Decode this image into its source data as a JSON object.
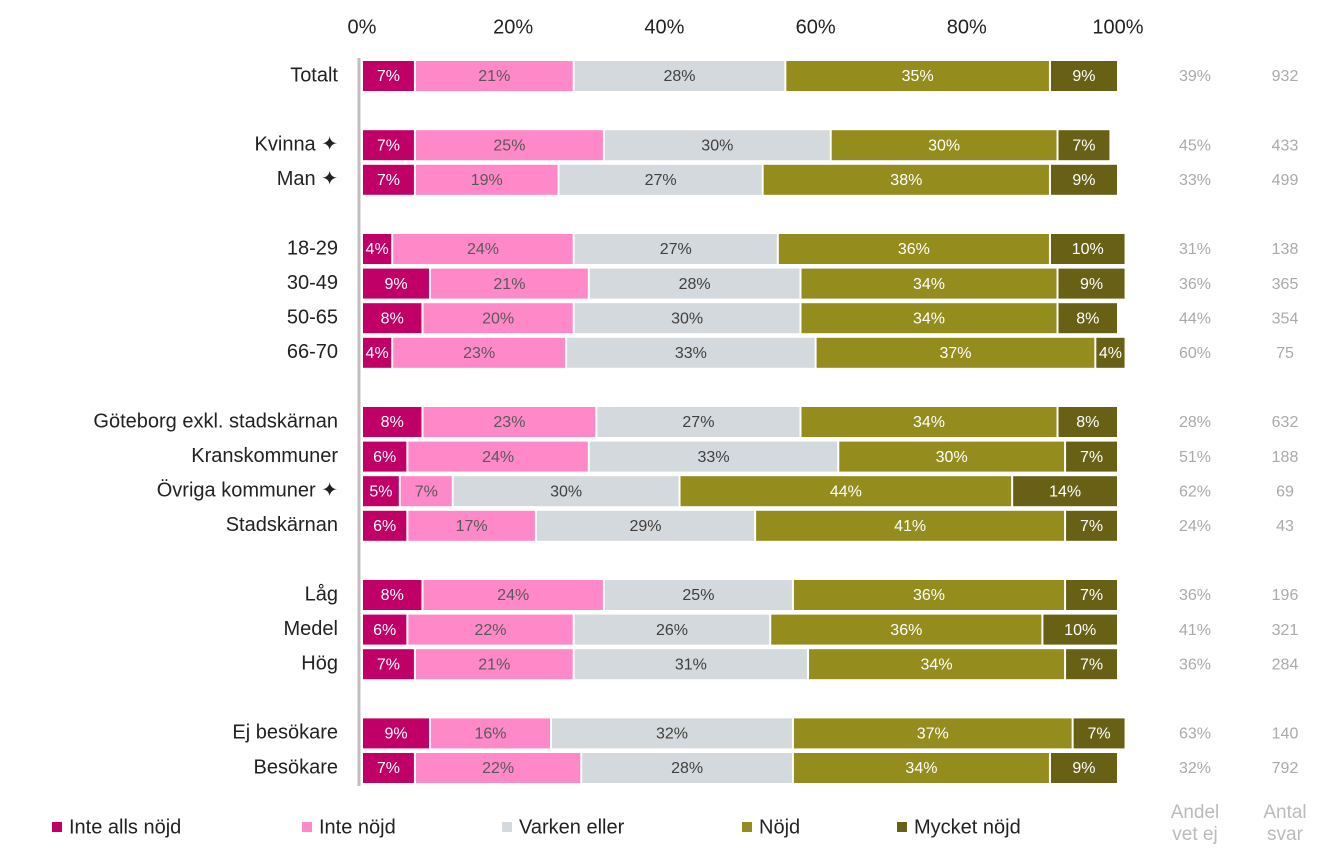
{
  "chart_data": {
    "type": "stacked-bar-horizontal",
    "categories": [
      "Totalt",
      null,
      "Kvinna ✦",
      "Man ✦",
      null,
      "18-29",
      "30-49",
      "50-65",
      "66-70",
      null,
      "Göteborg exkl. stadskärnan",
      "Kranskommuner",
      "Övriga kommuner ✦",
      "Stadskärnan",
      null,
      "Låg",
      "Medel",
      "Hög",
      null,
      "Ej besökare",
      "Besökare"
    ],
    "xlim": [
      0,
      100
    ],
    "xticks": [
      {
        "value": 0,
        "label": "0%"
      },
      {
        "value": 20,
        "label": "20%"
      },
      {
        "value": 40,
        "label": "40%"
      },
      {
        "value": 60,
        "label": "60%"
      },
      {
        "value": 80,
        "label": "80%"
      },
      {
        "value": 100,
        "label": "100%"
      }
    ],
    "series": [
      {
        "name": "Inte alls nöjd",
        "color": "#c10067",
        "label_color": "#ffffff",
        "values": [
          7,
          null,
          7,
          7,
          null,
          4,
          9,
          8,
          4,
          null,
          8,
          6,
          5,
          6,
          null,
          8,
          6,
          7,
          null,
          9,
          7
        ],
        "value_labels": [
          "7%",
          null,
          "7%",
          "7%",
          null,
          "4%",
          "9%",
          "8%",
          "4%",
          null,
          "8%",
          "6%",
          "5%",
          "6%",
          null,
          "8%",
          "6%",
          "7%",
          null,
          "9%",
          "7%"
        ]
      },
      {
        "name": "Inte nöjd",
        "color": "#ff88c8",
        "label_color": "#595959",
        "values": [
          21,
          null,
          25,
          19,
          null,
          24,
          21,
          20,
          23,
          null,
          23,
          24,
          7,
          17,
          null,
          24,
          22,
          21,
          null,
          16,
          22
        ],
        "value_labels": [
          "21%",
          null,
          "25%",
          "19%",
          null,
          "24%",
          "21%",
          "20%",
          "23%",
          null,
          "23%",
          "24%",
          "7%",
          "17%",
          null,
          "24%",
          "22%",
          "21%",
          null,
          "16%",
          "22%"
        ]
      },
      {
        "name": "Varken eller",
        "color": "#d3d9dc",
        "label_color": "#404040",
        "values": [
          28,
          null,
          30,
          27,
          null,
          27,
          28,
          30,
          33,
          null,
          27,
          33,
          30,
          29,
          null,
          25,
          26,
          31,
          null,
          32,
          28
        ],
        "value_labels": [
          "28%",
          null,
          "30%",
          "27%",
          null,
          "27%",
          "28%",
          "30%",
          "33%",
          null,
          "27%",
          "33%",
          "30%",
          "29%",
          null,
          "25%",
          "26%",
          "31%",
          null,
          "32%",
          "28%"
        ]
      },
      {
        "name": "Nöjd",
        "color": "#948d1e",
        "label_color": "#ffffff",
        "values": [
          35,
          null,
          30,
          38,
          null,
          36,
          34,
          34,
          37,
          null,
          34,
          30,
          44,
          41,
          null,
          36,
          36,
          34,
          null,
          37,
          34
        ],
        "value_labels": [
          "35%",
          null,
          "30%",
          "38%",
          null,
          "36%",
          "34%",
          "34%",
          "37%",
          null,
          "34%",
          "30%",
          "44%",
          "41%",
          null,
          "36%",
          "36%",
          "34%",
          null,
          "37%",
          "34%"
        ]
      },
      {
        "name": "Mycket nöjd",
        "color": "#676015",
        "label_color": "#ffffff",
        "values": [
          9,
          null,
          7,
          9,
          null,
          10,
          9,
          8,
          4,
          null,
          8,
          7,
          14,
          7,
          null,
          7,
          10,
          7,
          null,
          7,
          9
        ],
        "value_labels": [
          "9%",
          null,
          "7%",
          "9%",
          null,
          "10%",
          "9%",
          "8%",
          "4%",
          null,
          "8%",
          "7%",
          "14%",
          "7%",
          null,
          "7%",
          "10%",
          "7%",
          null,
          "7%",
          "9%"
        ]
      }
    ],
    "columns": [
      {
        "name": "Andel vet ej",
        "values": [
          39,
          null,
          45,
          33,
          null,
          31,
          36,
          44,
          60,
          null,
          28,
          51,
          62,
          24,
          null,
          36,
          41,
          36,
          null,
          63,
          32
        ],
        "value_labels": [
          "39%",
          null,
          "45%",
          "33%",
          null,
          "31%",
          "36%",
          "44%",
          "60%",
          null,
          "28%",
          "51%",
          "62%",
          "24%",
          null,
          "36%",
          "41%",
          "36%",
          null,
          "63%",
          "32%"
        ]
      },
      {
        "name": "Antal svar",
        "values": [
          932,
          null,
          433,
          499,
          null,
          138,
          365,
          354,
          75,
          null,
          632,
          188,
          69,
          43,
          null,
          196,
          321,
          284,
          null,
          140,
          792
        ]
      }
    ]
  }
}
